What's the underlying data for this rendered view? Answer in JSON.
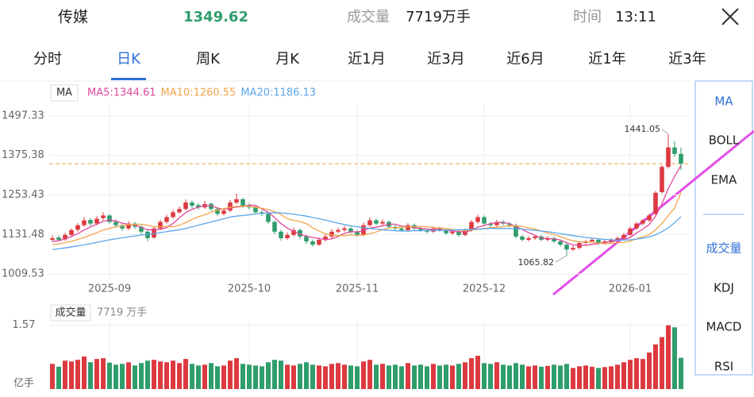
{
  "header": {
    "name": "传媒",
    "price": 1349.62,
    "volume_label": "成交量",
    "volume": "7719万手",
    "time_label": "时间",
    "time": "13:11"
  },
  "tabs": [
    "分时",
    "日K",
    "周K",
    "月K",
    "近1月",
    "近3月",
    "近6月",
    "近1年",
    "近3年"
  ],
  "active_tab": 1,
  "side_menu": [
    "MA",
    "BOLL",
    "EMA",
    "成交量",
    "KDJ",
    "MACD",
    "RSI"
  ],
  "side_active": [
    0,
    3
  ],
  "chart_data": {
    "type": "candlestick",
    "legend_title": "MA",
    "ylim": [
      992.4,
      1536.5
    ],
    "yticks": [
      1497.33,
      1375.38,
      1253.43,
      1131.48,
      1009.53
    ],
    "grid": true,
    "up_color": "#dc3a40",
    "down_color": "#2f9d6c",
    "categories": [
      null,
      null,
      null,
      null,
      null,
      null,
      null,
      null,
      null,
      "2025-09",
      null,
      null,
      null,
      null,
      null,
      null,
      null,
      null,
      null,
      null,
      null,
      null,
      null,
      null,
      null,
      null,
      null,
      null,
      null,
      null,
      null,
      "2025-10",
      null,
      null,
      null,
      null,
      null,
      null,
      null,
      null,
      null,
      null,
      null,
      null,
      null,
      null,
      null,
      null,
      "2025-11",
      null,
      null,
      null,
      null,
      null,
      null,
      null,
      null,
      null,
      null,
      null,
      null,
      null,
      null,
      null,
      null,
      null,
      null,
      null,
      "2025-12",
      null,
      null,
      null,
      null,
      null,
      null,
      null,
      null,
      null,
      null,
      null,
      null,
      null,
      null,
      null,
      null,
      null,
      null,
      null,
      null,
      null,
      null,
      "2026-01",
      null,
      null,
      null,
      null,
      null,
      null,
      null,
      null
    ],
    "candles": [
      [
        1115,
        1128,
        1108,
        1120
      ],
      [
        1122,
        1128,
        1110,
        1115
      ],
      [
        1116,
        1136,
        1112,
        1130
      ],
      [
        1130,
        1150,
        1125,
        1145
      ],
      [
        1146,
        1166,
        1140,
        1160
      ],
      [
        1160,
        1185,
        1155,
        1175
      ],
      [
        1176,
        1182,
        1158,
        1165
      ],
      [
        1165,
        1188,
        1160,
        1180
      ],
      [
        1182,
        1200,
        1175,
        1190
      ],
      [
        1190,
        1195,
        1165,
        1170
      ],
      [
        1170,
        1178,
        1152,
        1160
      ],
      [
        1160,
        1166,
        1142,
        1150
      ],
      [
        1150,
        1172,
        1145,
        1165
      ],
      [
        1165,
        1170,
        1148,
        1155
      ],
      [
        1155,
        1160,
        1132,
        1140
      ],
      [
        1140,
        1145,
        1110,
        1120
      ],
      [
        1122,
        1158,
        1118,
        1150
      ],
      [
        1150,
        1176,
        1145,
        1170
      ],
      [
        1170,
        1192,
        1165,
        1185
      ],
      [
        1185,
        1208,
        1180,
        1200
      ],
      [
        1200,
        1218,
        1195,
        1210
      ],
      [
        1210,
        1240,
        1205,
        1230
      ],
      [
        1230,
        1236,
        1212,
        1220
      ],
      [
        1222,
        1228,
        1208,
        1215
      ],
      [
        1215,
        1235,
        1210,
        1225
      ],
      [
        1226,
        1230,
        1204,
        1210
      ],
      [
        1210,
        1215,
        1188,
        1195
      ],
      [
        1195,
        1212,
        1190,
        1205
      ],
      [
        1205,
        1238,
        1200,
        1230
      ],
      [
        1230,
        1258,
        1225,
        1240
      ],
      [
        1240,
        1245,
        1214,
        1220
      ],
      [
        1220,
        1228,
        1208,
        1215
      ],
      [
        1215,
        1220,
        1195,
        1200
      ],
      [
        1200,
        1206,
        1188,
        1195
      ],
      [
        1195,
        1200,
        1165,
        1170
      ],
      [
        1170,
        1175,
        1132,
        1140
      ],
      [
        1140,
        1146,
        1112,
        1120
      ],
      [
        1120,
        1138,
        1115,
        1130
      ],
      [
        1130,
        1152,
        1125,
        1145
      ],
      [
        1145,
        1150,
        1118,
        1125
      ],
      [
        1125,
        1130,
        1102,
        1110
      ],
      [
        1110,
        1116,
        1094,
        1100
      ],
      [
        1100,
        1122,
        1096,
        1115
      ],
      [
        1115,
        1132,
        1110,
        1125
      ],
      [
        1125,
        1148,
        1120,
        1140
      ],
      [
        1140,
        1152,
        1135,
        1145
      ],
      [
        1145,
        1158,
        1140,
        1150
      ],
      [
        1150,
        1155,
        1134,
        1140
      ],
      [
        1140,
        1146,
        1124,
        1130
      ],
      [
        1130,
        1168,
        1126,
        1160
      ],
      [
        1160,
        1184,
        1155,
        1175
      ],
      [
        1175,
        1180,
        1160,
        1165
      ],
      [
        1165,
        1178,
        1160,
        1170
      ],
      [
        1170,
        1175,
        1150,
        1155
      ],
      [
        1155,
        1160,
        1144,
        1150
      ],
      [
        1150,
        1155,
        1140,
        1145
      ],
      [
        1145,
        1166,
        1140,
        1160
      ],
      [
        1160,
        1165,
        1145,
        1150
      ],
      [
        1150,
        1156,
        1140,
        1145
      ],
      [
        1145,
        1150,
        1134,
        1140
      ],
      [
        1140,
        1156,
        1136,
        1150
      ],
      [
        1150,
        1155,
        1140,
        1145
      ],
      [
        1145,
        1150,
        1130,
        1135
      ],
      [
        1135,
        1146,
        1130,
        1140
      ],
      [
        1140,
        1145,
        1124,
        1130
      ],
      [
        1130,
        1150,
        1126,
        1145
      ],
      [
        1145,
        1176,
        1140,
        1170
      ],
      [
        1170,
        1192,
        1165,
        1185
      ],
      [
        1185,
        1190,
        1160,
        1165
      ],
      [
        1165,
        1170,
        1154,
        1160
      ],
      [
        1160,
        1176,
        1155,
        1170
      ],
      [
        1170,
        1175,
        1160,
        1165
      ],
      [
        1165,
        1170,
        1154,
        1160
      ],
      [
        1160,
        1165,
        1120,
        1125
      ],
      [
        1125,
        1130,
        1110,
        1115
      ],
      [
        1115,
        1126,
        1110,
        1120
      ],
      [
        1120,
        1130,
        1115,
        1125
      ],
      [
        1125,
        1130,
        1110,
        1115
      ],
      [
        1115,
        1126,
        1110,
        1120
      ],
      [
        1120,
        1125,
        1104,
        1110
      ],
      [
        1110,
        1114,
        1094,
        1100
      ],
      [
        1100,
        1104,
        1065.82,
        1085
      ],
      [
        1085,
        1096,
        1080,
        1090
      ],
      [
        1090,
        1110,
        1086,
        1105
      ],
      [
        1105,
        1115,
        1100,
        1110
      ],
      [
        1110,
        1120,
        1105,
        1115
      ],
      [
        1115,
        1118,
        1100,
        1105
      ],
      [
        1105,
        1115,
        1100,
        1110
      ],
      [
        1110,
        1120,
        1105,
        1115
      ],
      [
        1115,
        1125,
        1110,
        1120
      ],
      [
        1120,
        1136,
        1115,
        1130
      ],
      [
        1130,
        1156,
        1126,
        1150
      ],
      [
        1150,
        1170,
        1145,
        1165
      ],
      [
        1165,
        1180,
        1160,
        1175
      ],
      [
        1175,
        1196,
        1170,
        1190
      ],
      [
        1195,
        1266,
        1190,
        1260
      ],
      [
        1262,
        1345,
        1258,
        1340
      ],
      [
        1340,
        1441.05,
        1335,
        1400
      ],
      [
        1400,
        1420,
        1370,
        1380
      ],
      [
        1380,
        1400,
        1330,
        1349.62
      ]
    ],
    "high_index": 97,
    "low_index": 81,
    "series": [
      {
        "name": "MA5:1344.61",
        "color": "#e0489a",
        "values": [
          1110,
          1112,
          1118,
          1125,
          1134,
          1145,
          1155,
          1163,
          1172,
          1176,
          1173,
          1166,
          1163,
          1160,
          1154,
          1146,
          1146,
          1147,
          1153,
          1165,
          1183,
          1199,
          1209,
          1216,
          1220,
          1220,
          1213,
          1209,
          1213,
          1216,
          1218,
          1222,
          1221,
          1210,
          1200,
          1184,
          1165,
          1151,
          1141,
          1132,
          1126,
          1122,
          1119,
          1115,
          1118,
          1125,
          1135,
          1140,
          1139,
          1143,
          1151,
          1154,
          1158,
          1163,
          1163,
          1157,
          1156,
          1152,
          1150,
          1148,
          1147,
          1148,
          1144,
          1142,
          1140,
          1139,
          1144,
          1154,
          1159,
          1165,
          1168,
          1169,
          1164,
          1156,
          1147,
          1137,
          1129,
          1120,
          1119,
          1118,
          1114,
          1106,
          1099,
          1098,
          1098,
          1101,
          1103,
          1107,
          1109,
          1113,
          1116,
          1122,
          1136,
          1148,
          1162,
          1188,
          1226,
          1273,
          1311,
          1344.61
        ]
      },
      {
        "name": "MA10:1260.55",
        "color": "#f2a54a",
        "values": [
          1100,
          1102,
          1106,
          1110,
          1116,
          1122,
          1130,
          1137,
          1145,
          1150,
          1155,
          1158,
          1162,
          1162,
          1163,
          1160,
          1155,
          1155,
          1156,
          1155,
          1160,
          1168,
          1178,
          1186,
          1192,
          1200,
          1206,
          1211,
          1215,
          1218,
          1219,
          1218,
          1215,
          1212,
          1208,
          1202,
          1193,
          1180,
          1175,
          1171,
          1165,
          1152,
          1142,
          1133,
          1130,
          1128,
          1128,
          1130,
          1129,
          1130,
          1134,
          1139,
          1146,
          1151,
          1153,
          1154,
          1155,
          1155,
          1156,
          1155,
          1153,
          1152,
          1150,
          1147,
          1145,
          1143,
          1145,
          1147,
          1150,
          1152,
          1154,
          1156,
          1158,
          1158,
          1156,
          1152,
          1148,
          1142,
          1136,
          1131,
          1125,
          1117,
          1112,
          1109,
          1108,
          1107,
          1105,
          1103,
          1104,
          1106,
          1107,
          1111,
          1118,
          1124,
          1131,
          1146,
          1165,
          1190,
          1213,
          1260.55
        ]
      },
      {
        "name": "MA20:1186.13",
        "color": "#5aa6e8",
        "values": [
          1085,
          1087,
          1090,
          1093,
          1096,
          1099,
          1103,
          1107,
          1111,
          1115,
          1118,
          1121,
          1124,
          1127,
          1130,
          1132,
          1134,
          1137,
          1140,
          1143,
          1146,
          1150,
          1155,
          1160,
          1165,
          1170,
          1175,
          1180,
          1185,
          1188,
          1190,
          1192,
          1195,
          1197,
          1198,
          1199,
          1198,
          1196,
          1194,
          1191,
          1188,
          1184,
          1180,
          1176,
          1171,
          1166,
          1162,
          1158,
          1155,
          1152,
          1150,
          1148,
          1146,
          1144,
          1143,
          1142,
          1142,
          1143,
          1143,
          1144,
          1144,
          1144,
          1145,
          1145,
          1146,
          1146,
          1147,
          1148,
          1149,
          1150,
          1150,
          1150,
          1150,
          1149,
          1148,
          1146,
          1144,
          1142,
          1140,
          1137,
          1134,
          1131,
          1128,
          1125,
          1122,
          1120,
          1118,
          1116,
          1115,
          1114,
          1114,
          1115,
          1117,
          1120,
          1124,
          1130,
          1140,
          1152,
          1168,
          1186.13
        ]
      }
    ],
    "volume": {
      "title": "成交量",
      "subtitle": "7719 万手",
      "unit": "亿手",
      "ylim": [
        0,
        1.72
      ],
      "yticks": [
        1.57
      ],
      "values": [
        0.62,
        0.55,
        0.7,
        0.68,
        0.72,
        0.8,
        0.66,
        0.74,
        0.76,
        0.65,
        0.6,
        0.62,
        0.66,
        0.58,
        0.64,
        0.7,
        0.72,
        0.68,
        0.66,
        0.7,
        0.64,
        0.74,
        0.62,
        0.58,
        0.6,
        0.64,
        0.56,
        0.58,
        0.7,
        0.76,
        0.62,
        0.6,
        0.58,
        0.56,
        0.66,
        0.72,
        0.7,
        0.6,
        0.58,
        0.62,
        0.66,
        0.6,
        0.58,
        0.56,
        0.62,
        0.64,
        0.6,
        0.58,
        0.56,
        0.68,
        0.72,
        0.6,
        0.62,
        0.58,
        0.6,
        0.56,
        0.64,
        0.58,
        0.6,
        0.56,
        0.62,
        0.58,
        0.6,
        0.58,
        0.62,
        0.66,
        0.76,
        0.82,
        0.64,
        0.62,
        0.66,
        0.6,
        0.58,
        0.64,
        0.6,
        0.56,
        0.58,
        0.55,
        0.57,
        0.6,
        0.58,
        0.62,
        0.52,
        0.56,
        0.58,
        0.55,
        0.52,
        0.54,
        0.56,
        0.6,
        0.66,
        0.72,
        0.76,
        0.74,
        0.9,
        1.1,
        1.28,
        1.57,
        1.52,
        0.77
      ]
    }
  }
}
